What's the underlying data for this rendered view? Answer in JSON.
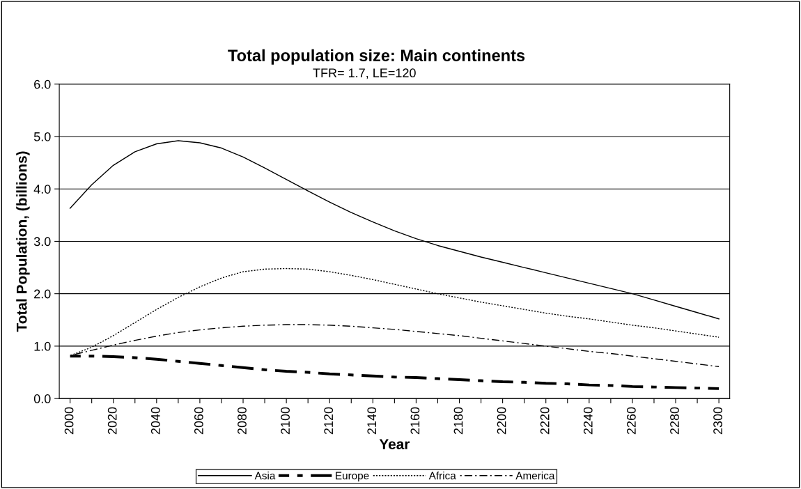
{
  "chart_data": {
    "type": "line",
    "title": "Total population size: Main continents",
    "subtitle": "TFR= 1.7, LE=120",
    "xlabel": "Year",
    "ylabel": "Total Population, (billions)",
    "x": [
      2000,
      2010,
      2020,
      2030,
      2040,
      2050,
      2060,
      2070,
      2080,
      2090,
      2100,
      2110,
      2120,
      2130,
      2140,
      2150,
      2160,
      2170,
      2180,
      2190,
      2200,
      2210,
      2220,
      2230,
      2240,
      2250,
      2260,
      2270,
      2280,
      2290,
      2300
    ],
    "series": [
      {
        "name": "Asia",
        "color": "#000000",
        "line_style": "solid",
        "values": [
          3.63,
          4.08,
          4.45,
          4.71,
          4.86,
          4.92,
          4.88,
          4.78,
          4.61,
          4.4,
          4.18,
          3.96,
          3.75,
          3.55,
          3.37,
          3.2,
          3.05,
          2.92,
          2.81,
          2.7,
          2.6,
          2.5,
          2.4,
          2.3,
          2.2,
          2.1,
          2.0,
          1.88,
          1.76,
          1.64,
          1.52
        ]
      },
      {
        "name": "Europe",
        "color": "#000000",
        "line_style": "dashdot",
        "values": [
          0.81,
          0.81,
          0.8,
          0.78,
          0.75,
          0.71,
          0.67,
          0.63,
          0.59,
          0.55,
          0.52,
          0.5,
          0.47,
          0.45,
          0.43,
          0.41,
          0.4,
          0.38,
          0.36,
          0.34,
          0.32,
          0.31,
          0.29,
          0.28,
          0.26,
          0.25,
          0.23,
          0.22,
          0.21,
          0.2,
          0.19
        ]
      },
      {
        "name": "Africa",
        "color": "#000000",
        "line_style": "dotted",
        "values": [
          0.82,
          0.98,
          1.2,
          1.45,
          1.7,
          1.93,
          2.13,
          2.3,
          2.42,
          2.47,
          2.48,
          2.47,
          2.42,
          2.35,
          2.27,
          2.18,
          2.09,
          2.0,
          1.92,
          1.84,
          1.77,
          1.7,
          1.63,
          1.57,
          1.52,
          1.46,
          1.4,
          1.35,
          1.29,
          1.23,
          1.17
        ]
      },
      {
        "name": "America",
        "color": "#000000",
        "line_style": "dashdotthin",
        "values": [
          0.82,
          0.92,
          1.02,
          1.11,
          1.19,
          1.26,
          1.31,
          1.35,
          1.38,
          1.4,
          1.41,
          1.41,
          1.4,
          1.38,
          1.35,
          1.32,
          1.28,
          1.24,
          1.2,
          1.15,
          1.1,
          1.05,
          1.0,
          0.95,
          0.9,
          0.86,
          0.81,
          0.76,
          0.71,
          0.66,
          0.61
        ]
      }
    ],
    "xlim": [
      1995,
      2305
    ],
    "xticks": [
      2000,
      {
        "value": 2010,
        "label": null
      },
      2020,
      {
        "value": 2030,
        "label": null
      },
      2040,
      {
        "value": 2050,
        "label": null
      },
      2060,
      {
        "value": 2070,
        "label": null
      },
      2080,
      {
        "value": 2090,
        "label": null
      },
      2100,
      {
        "value": 2110,
        "label": null
      },
      2120,
      {
        "value": 2130,
        "label": null
      },
      2140,
      {
        "value": 2150,
        "label": null
      },
      2160,
      {
        "value": 2170,
        "label": null
      },
      2180,
      {
        "value": 2190,
        "label": null
      },
      2200,
      {
        "value": 2210,
        "label": null
      },
      2220,
      {
        "value": 2230,
        "label": null
      },
      2240,
      {
        "value": 2250,
        "label": null
      },
      2260,
      {
        "value": 2270,
        "label": null
      },
      2280,
      {
        "value": 2290,
        "label": null
      },
      2300
    ],
    "ylim": [
      0,
      6
    ],
    "yticks": [
      {
        "value": 0,
        "label": "0.0"
      },
      {
        "value": 1,
        "label": "1.0"
      },
      {
        "value": 2,
        "label": "2.0"
      },
      {
        "value": 3,
        "label": "3.0"
      },
      {
        "value": 4,
        "label": "4.0"
      },
      {
        "value": 5,
        "label": "5.0"
      },
      {
        "value": 6,
        "label": "6.0"
      }
    ],
    "grid": "y",
    "legend": "bottom",
    "marker": "none"
  }
}
